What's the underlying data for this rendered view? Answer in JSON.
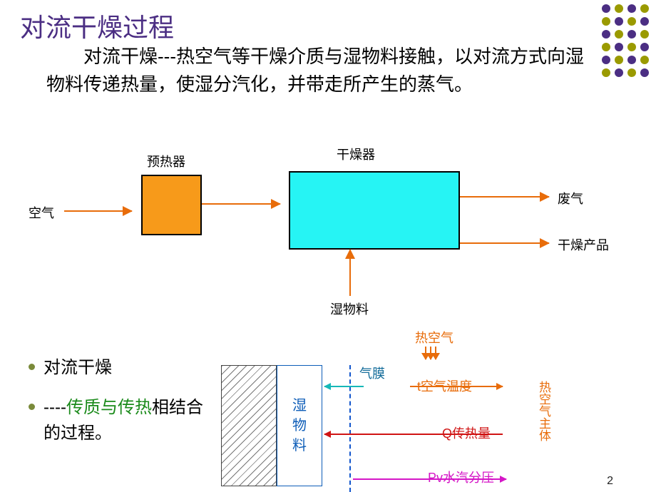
{
  "title": {
    "text": "对流干燥过程",
    "color": "#4b2e83",
    "fontsize": 36
  },
  "description": "　　对流干燥---热空气等干燥介质与湿物料接触，以对流方式向湿物料传递热量，使湿分汽化，并带走所产生的蒸气。",
  "dots": {
    "colors": [
      "#4b2e83",
      "#9a9a00",
      "#4b2e83",
      "#9a9a00",
      "#9a9a00",
      "#4b2e83",
      "#9a9a00",
      "#4b2e83",
      "#4b2e83",
      "#9a9a00",
      "#4b2e83",
      "#9a9a00",
      "#9a9a00",
      "#4b2e83",
      "#9a9a00",
      "#4b2e83",
      "#4b2e83",
      "#9a9a00",
      "#4b2e83",
      "#9a9a00",
      "#9a9a00",
      "#4b2e83",
      "#9a9a00",
      "#4b2e83"
    ]
  },
  "diagram1": {
    "type": "flowchart",
    "air_label": "空气",
    "preheater": {
      "label": "预热器",
      "fill": "#f79a1a",
      "border": "#000000"
    },
    "dryer": {
      "label": "干燥器",
      "fill": "#26f4f4",
      "border": "#000000"
    },
    "wet_material": "湿物料",
    "waste_gas": "废气",
    "dry_product": "干燥产品",
    "arrow_color": "#e86c0a"
  },
  "bullets": {
    "item1": "对流干燥",
    "item2_prefix": "----",
    "item2_green": "传质与传热",
    "item2_suffix": "相结合的过程。",
    "green_color": "#1a8a1a",
    "dot_color": "#7a8a3a"
  },
  "diagram2": {
    "type": "infographic",
    "hot_air": "热空气",
    "gas_film": "气膜",
    "wet_material_lines": [
      "湿",
      "物",
      "料"
    ],
    "t_label": "t空气温度",
    "q_label": "Q传热量",
    "pv_label": "Pv水汽分压",
    "hot_air_body": "热空气主体",
    "colors": {
      "hot_air": "#e86c0a",
      "gas_film_text": "#106a98",
      "gas_film_arrow": "#16b8b8",
      "t_line": "#e86c0a",
      "q_line": "#d01414",
      "pv_line": "#d516c7",
      "wet_text": "#0d5db8",
      "dash": "#1155cc"
    }
  },
  "pagenum": "2"
}
